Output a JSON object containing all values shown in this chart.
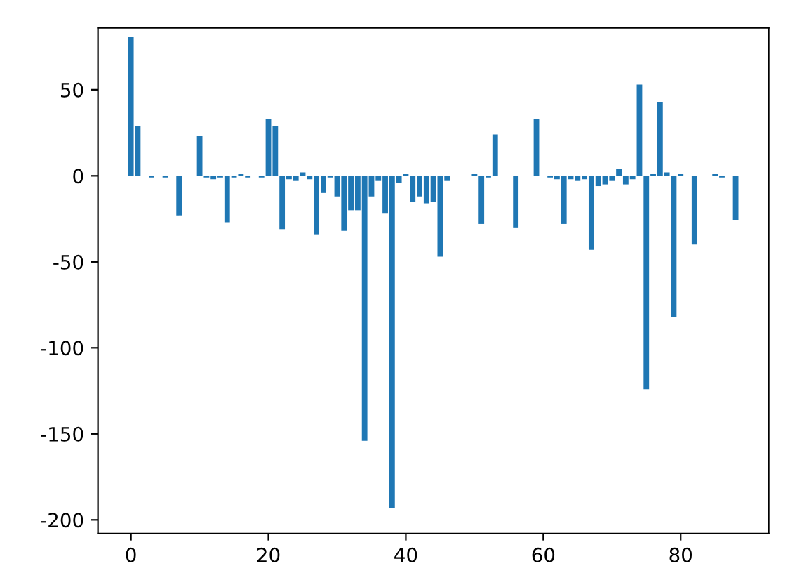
{
  "chart_data": {
    "type": "bar",
    "x": [
      0,
      1,
      2,
      3,
      4,
      5,
      6,
      7,
      8,
      9,
      10,
      11,
      12,
      13,
      14,
      15,
      16,
      17,
      18,
      19,
      20,
      21,
      22,
      23,
      24,
      25,
      26,
      27,
      28,
      29,
      30,
      31,
      32,
      33,
      34,
      35,
      36,
      37,
      38,
      39,
      40,
      41,
      42,
      43,
      44,
      45,
      46,
      47,
      48,
      49,
      50,
      51,
      52,
      53,
      54,
      55,
      56,
      57,
      58,
      59,
      60,
      61,
      62,
      63,
      64,
      65,
      66,
      67,
      68,
      69,
      70,
      71,
      72,
      73,
      74,
      75,
      76,
      77,
      78,
      79,
      80,
      81,
      82,
      83,
      84,
      85,
      86,
      87,
      88
    ],
    "values": [
      81,
      29,
      0,
      -1,
      0,
      -1,
      0,
      -23,
      0,
      0,
      23,
      -1,
      -2,
      -1,
      -27,
      -1,
      1,
      -1,
      0,
      -1,
      33,
      29,
      -31,
      -2,
      -3,
      2,
      -2,
      -34,
      -10,
      -1,
      -12,
      -32,
      -20,
      -20,
      -154,
      -12,
      -3,
      -22,
      -193,
      -4,
      1,
      -15,
      -12,
      -16,
      -15,
      -47,
      -3,
      0,
      0,
      0,
      1,
      -28,
      -1,
      24,
      0,
      0,
      -30,
      0,
      0,
      33,
      0,
      -1,
      -2,
      -28,
      -2,
      -3,
      -2,
      -43,
      -6,
      -5,
      -3,
      4,
      -5,
      -2,
      53,
      -124,
      1,
      43,
      2,
      -82,
      1,
      0,
      -40,
      0,
      0,
      1,
      -1,
      0,
      -26
    ],
    "color": "#1f77b4",
    "xlim": [
      -4.8,
      92.8
    ],
    "ylim": [
      -208,
      86
    ],
    "xticks": [
      0,
      20,
      40,
      60,
      80
    ],
    "yticks": [
      -200,
      -150,
      -100,
      -50,
      0,
      50
    ],
    "grid": false
  }
}
